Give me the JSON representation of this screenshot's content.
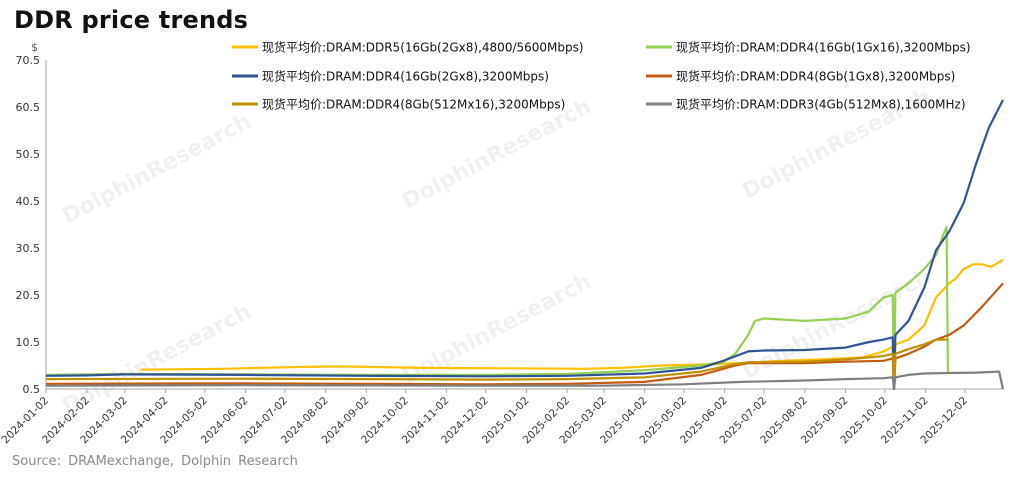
{
  "title": "DDR price trends",
  "source": "Source:  DRAMexchange,  Dolphin  Research",
  "watermark": "DolphinResearch",
  "chart_data": {
    "type": "line",
    "title": "DDR price trends",
    "ylabel": "$",
    "ylim": [
      0.5,
      70.5
    ],
    "yticks": [
      "0.5",
      "10.5",
      "20.5",
      "30.5",
      "40.5",
      "50.5",
      "60.5",
      "70.5"
    ],
    "x_tick_labels": [
      "2024-01-02",
      "2024-02-02",
      "2024-03-02",
      "2024-04-02",
      "2024-05-02",
      "2024-06-02",
      "2024-07-02",
      "2024-08-02",
      "2024-09-02",
      "2024-10-02",
      "2024-11-02",
      "2024-12-02",
      "2025-01-02",
      "2025-02-02",
      "2025-03-02",
      "2025-04-02",
      "2025-05-02",
      "2025-06-02",
      "2025-07-02",
      "2025-08-02",
      "2025-09-02",
      "2025-10-02",
      "2025-11-02",
      "2025-12-02"
    ],
    "x_range": [
      "2024-01-02",
      "2025-12-31"
    ],
    "grid": false,
    "legend_position": "top",
    "series": [
      {
        "name": "现货平均价:DRAM:DDR5(16Gb(2Gx8),4800/5600Mbps)",
        "color": "#FFC000",
        "points": [
          [
            "2024-01-02",
            null
          ],
          [
            "2024-03-14",
            null
          ],
          [
            "2024-03-14",
            4.6
          ],
          [
            "2024-05-15",
            4.8
          ],
          [
            "2024-07-15",
            5.2
          ],
          [
            "2024-08-15",
            5.3
          ],
          [
            "2024-10-15",
            5.0
          ],
          [
            "2024-12-15",
            4.9
          ],
          [
            "2025-02-15",
            4.8
          ],
          [
            "2025-03-15",
            5.0
          ],
          [
            "2025-04-15",
            5.5
          ],
          [
            "2025-05-15",
            5.7
          ],
          [
            "2025-06-15",
            6.0
          ],
          [
            "2025-07-15",
            6.5
          ],
          [
            "2025-08-15",
            6.8
          ],
          [
            "2025-09-15",
            7.2
          ],
          [
            "2025-10-01",
            8.5
          ],
          [
            "2025-10-08",
            9.5
          ],
          [
            "2025-10-09",
            0.5
          ],
          [
            "2025-10-10",
            10
          ],
          [
            "2025-10-20",
            11
          ],
          [
            "2025-11-01",
            14
          ],
          [
            "2025-11-10",
            20
          ],
          [
            "2025-11-20",
            23
          ],
          [
            "2025-11-25",
            24
          ],
          [
            "2025-12-01",
            26
          ],
          [
            "2025-12-08",
            27
          ],
          [
            "2025-12-15",
            27
          ],
          [
            "2025-12-22",
            26.5
          ],
          [
            "2025-12-31",
            28
          ]
        ]
      },
      {
        "name": "现货平均价:DRAM:DDR4(16Gb(1Gx16),3200Mbps)",
        "color": "#92D050",
        "points": [
          [
            "2024-01-02",
            3.5
          ],
          [
            "2024-03-02",
            3.7
          ],
          [
            "2024-06-02",
            3.6
          ],
          [
            "2024-09-02",
            3.5
          ],
          [
            "2024-12-02",
            3.5
          ],
          [
            "2025-02-02",
            3.7
          ],
          [
            "2025-04-02",
            4.5
          ],
          [
            "2025-05-15",
            5.5
          ],
          [
            "2025-06-01",
            6.3
          ],
          [
            "2025-06-10",
            8
          ],
          [
            "2025-06-20",
            12
          ],
          [
            "2025-06-25",
            15
          ],
          [
            "2025-07-02",
            15.5
          ],
          [
            "2025-08-02",
            15
          ],
          [
            "2025-09-02",
            15.5
          ],
          [
            "2025-09-20",
            17
          ],
          [
            "2025-10-01",
            20
          ],
          [
            "2025-10-08",
            20.5
          ],
          [
            "2025-10-09",
            0.5
          ],
          [
            "2025-10-10",
            21
          ],
          [
            "2025-10-20",
            23
          ],
          [
            "2025-11-01",
            26
          ],
          [
            "2025-11-10",
            29
          ],
          [
            "2025-11-15",
            33
          ],
          [
            "2025-11-18",
            35
          ],
          [
            "2025-11-19",
            4
          ],
          [
            "2025-11-21",
            null
          ],
          [
            "2025-12-31",
            null
          ]
        ]
      },
      {
        "name": "现货平均价:DRAM:DDR4(16Gb(2Gx8),3200Mbps)",
        "color": "#2F5597",
        "points": [
          [
            "2024-01-02",
            3.3
          ],
          [
            "2024-02-02",
            3.4
          ],
          [
            "2024-03-02",
            3.6
          ],
          [
            "2024-06-02",
            3.5
          ],
          [
            "2024-09-02",
            3.3
          ],
          [
            "2024-12-02",
            3.2
          ],
          [
            "2025-02-02",
            3.3
          ],
          [
            "2025-04-02",
            3.8
          ],
          [
            "2025-05-15",
            5
          ],
          [
            "2025-06-01",
            6.5
          ],
          [
            "2025-06-20",
            8.5
          ],
          [
            "2025-07-02",
            8.7
          ],
          [
            "2025-08-02",
            8.8
          ],
          [
            "2025-09-02",
            9.3
          ],
          [
            "2025-09-20",
            10.5
          ],
          [
            "2025-10-01",
            11
          ],
          [
            "2025-10-08",
            11.5
          ],
          [
            "2025-10-09",
            0.5
          ],
          [
            "2025-10-10",
            12
          ],
          [
            "2025-10-20",
            15
          ],
          [
            "2025-11-01",
            22
          ],
          [
            "2025-11-10",
            30
          ],
          [
            "2025-11-20",
            34
          ],
          [
            "2025-12-01",
            40
          ],
          [
            "2025-12-10",
            48
          ],
          [
            "2025-12-20",
            56
          ],
          [
            "2025-12-31",
            62
          ]
        ]
      },
      {
        "name": "现货平均价:DRAM:DDR4(8Gb(1Gx8),3200Mbps)",
        "color": "#C55A11",
        "points": [
          [
            "2024-01-02",
            1.6
          ],
          [
            "2024-06-02",
            1.7
          ],
          [
            "2024-09-02",
            1.6
          ],
          [
            "2024-12-02",
            1.5
          ],
          [
            "2025-02-02",
            1.6
          ],
          [
            "2025-04-02",
            2.0
          ],
          [
            "2025-05-15",
            3.5
          ],
          [
            "2025-06-10",
            5.5
          ],
          [
            "2025-06-20",
            6.0
          ],
          [
            "2025-08-02",
            6.0
          ],
          [
            "2025-09-02",
            6.3
          ],
          [
            "2025-10-01",
            6.5
          ],
          [
            "2025-10-08",
            7
          ],
          [
            "2025-10-09",
            0.5
          ],
          [
            "2025-10-10",
            7
          ],
          [
            "2025-10-20",
            8
          ],
          [
            "2025-11-01",
            9.5
          ],
          [
            "2025-11-10",
            11
          ],
          [
            "2025-11-20",
            12
          ],
          [
            "2025-12-01",
            14
          ],
          [
            "2025-12-15",
            18
          ],
          [
            "2025-12-31",
            23
          ]
        ]
      },
      {
        "name": "现货平均价:DRAM:DDR4(8Gb(512Mx16),3200Mbps)",
        "color": "#BF9000",
        "points": [
          [
            "2024-01-02",
            2.6
          ],
          [
            "2024-06-02",
            2.7
          ],
          [
            "2024-09-02",
            2.6
          ],
          [
            "2024-12-02",
            2.5
          ],
          [
            "2025-02-02",
            2.6
          ],
          [
            "2025-04-02",
            3.0
          ],
          [
            "2025-05-15",
            4.2
          ],
          [
            "2025-06-10",
            5.8
          ],
          [
            "2025-06-20",
            6.2
          ],
          [
            "2025-08-02",
            6.3
          ],
          [
            "2025-09-02",
            6.8
          ],
          [
            "2025-10-01",
            7.5
          ],
          [
            "2025-10-08",
            8
          ],
          [
            "2025-10-09",
            0.5
          ],
          [
            "2025-10-10",
            8
          ],
          [
            "2025-10-20",
            9
          ],
          [
            "2025-11-01",
            10
          ],
          [
            "2025-11-10",
            11
          ],
          [
            "2025-11-19",
            11
          ],
          [
            "2025-11-20",
            null
          ],
          [
            "2025-12-31",
            null
          ]
        ]
      },
      {
        "name": "现货平均价:DRAM:DDR3(4Gb(512Mx8),1600MHz)",
        "color": "#7F7F7F",
        "points": [
          [
            "2024-01-02",
            1.2
          ],
          [
            "2024-06-02",
            1.3
          ],
          [
            "2024-12-02",
            1.2
          ],
          [
            "2025-03-02",
            1.2
          ],
          [
            "2025-05-02",
            1.5
          ],
          [
            "2025-06-15",
            2.0
          ],
          [
            "2025-08-02",
            2.3
          ],
          [
            "2025-09-02",
            2.6
          ],
          [
            "2025-10-01",
            2.8
          ],
          [
            "2025-10-08",
            3.0
          ],
          [
            "2025-10-09",
            0.5
          ],
          [
            "2025-10-10",
            3.0
          ],
          [
            "2025-10-20",
            3.5
          ],
          [
            "2025-11-01",
            3.8
          ],
          [
            "2025-11-20",
            3.9
          ],
          [
            "2025-12-10",
            4.0
          ],
          [
            "2025-12-28",
            4.2
          ],
          [
            "2025-12-31",
            0.5
          ]
        ]
      }
    ]
  }
}
